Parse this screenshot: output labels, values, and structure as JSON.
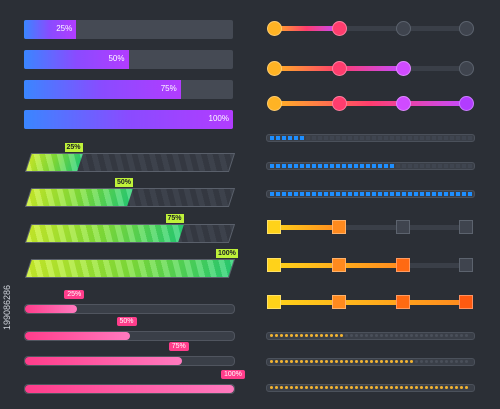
{
  "gradient_bars": [
    {
      "label": "25%",
      "value": 0.25
    },
    {
      "label": "50%",
      "value": 0.5
    },
    {
      "label": "75%",
      "value": 0.75
    },
    {
      "label": "100%",
      "value": 1.0
    }
  ],
  "striped_bars": [
    {
      "label": "25%",
      "value": 0.25
    },
    {
      "label": "50%",
      "value": 0.5
    },
    {
      "label": "75%",
      "value": 0.75
    },
    {
      "label": "100%",
      "value": 1.0
    }
  ],
  "pink_bars": [
    {
      "label": "25%",
      "value": 0.25
    },
    {
      "label": "50%",
      "value": 0.5
    },
    {
      "label": "75%",
      "value": 0.75
    },
    {
      "label": "100%",
      "value": 1.0
    }
  ],
  "node_sliders": [
    {
      "active_steps": 1
    },
    {
      "active_steps": 2
    },
    {
      "active_steps": 3
    }
  ],
  "square_sliders": [
    {
      "active_steps": 1
    },
    {
      "active_steps": 2
    },
    {
      "active_steps": 3
    }
  ],
  "blue_segment_bars": [
    {
      "value": 0.18
    },
    {
      "value": 0.62
    },
    {
      "value": 1.0
    }
  ],
  "dot_bars": [
    {
      "value": 0.38
    },
    {
      "value": 0.72
    },
    {
      "value": 1.0
    }
  ],
  "colors": {
    "background": "#2b2f36",
    "gradient_start": "#3a86ff",
    "gradient_end": "#b23cff",
    "lime": "#bff23a",
    "pink": "#ff3d8b",
    "orange": "#ff8a1e",
    "yellow": "#ffd21a",
    "blue_cell": "#1e8fff",
    "gold_dot": "#f2b431"
  },
  "watermark_id": "199086286"
}
